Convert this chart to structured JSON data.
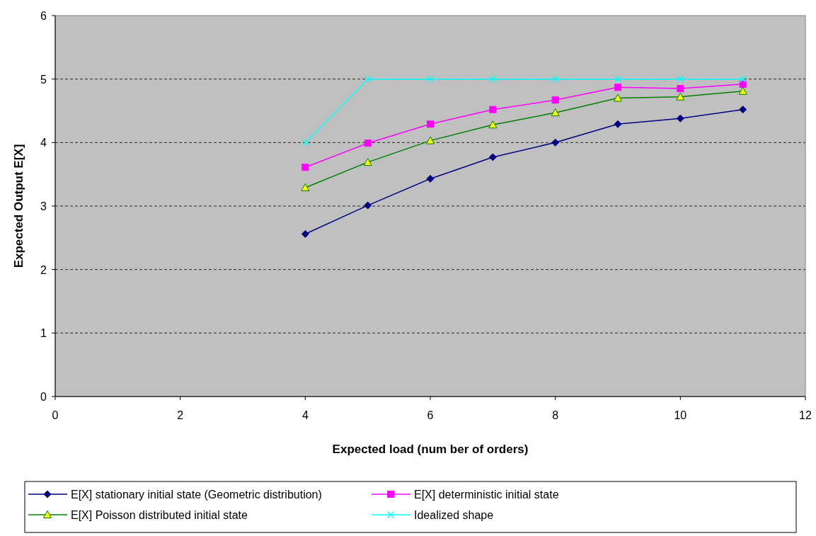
{
  "chart_data": {
    "type": "line",
    "xlabel": "Expected load (num ber of orders)",
    "ylabel": "Expected Output E[X]",
    "xlim": [
      0,
      12
    ],
    "xticks": [
      0,
      2,
      4,
      6,
      8,
      10,
      12
    ],
    "ylim": [
      0,
      6
    ],
    "yticks": [
      0,
      1,
      2,
      3,
      4,
      5,
      6
    ],
    "grid": "y",
    "legend": "bottom",
    "series": [
      {
        "name": "E[X] stationary initial state (Geometric distribution)",
        "color": "#000080",
        "marker": "diamond",
        "x": [
          4,
          5,
          6,
          7,
          8,
          9,
          10,
          11
        ],
        "values": [
          2.56,
          3.01,
          3.43,
          3.77,
          4.0,
          4.29,
          4.38,
          4.52
        ]
      },
      {
        "name": "E[X] deterministic initial state",
        "color": "#ff00ff",
        "marker": "square",
        "x": [
          4,
          5,
          6,
          7,
          8,
          9,
          10,
          11
        ],
        "values": [
          3.61,
          3.99,
          4.29,
          4.52,
          4.67,
          4.87,
          4.85,
          4.92
        ]
      },
      {
        "name": "E[X] Poisson distributed initial state",
        "color": "#008000",
        "marker": "triangle",
        "x": [
          4,
          5,
          6,
          7,
          8,
          9,
          10,
          11
        ],
        "values": [
          3.29,
          3.69,
          4.03,
          4.28,
          4.47,
          4.7,
          4.72,
          4.81
        ]
      },
      {
        "name": "Idealized shape",
        "color": "#00ffff",
        "marker": "cross",
        "x": [
          4,
          5,
          6,
          7,
          8,
          9,
          10,
          11
        ],
        "values": [
          4,
          5,
          5,
          5,
          5,
          5,
          5,
          5
        ]
      }
    ]
  }
}
